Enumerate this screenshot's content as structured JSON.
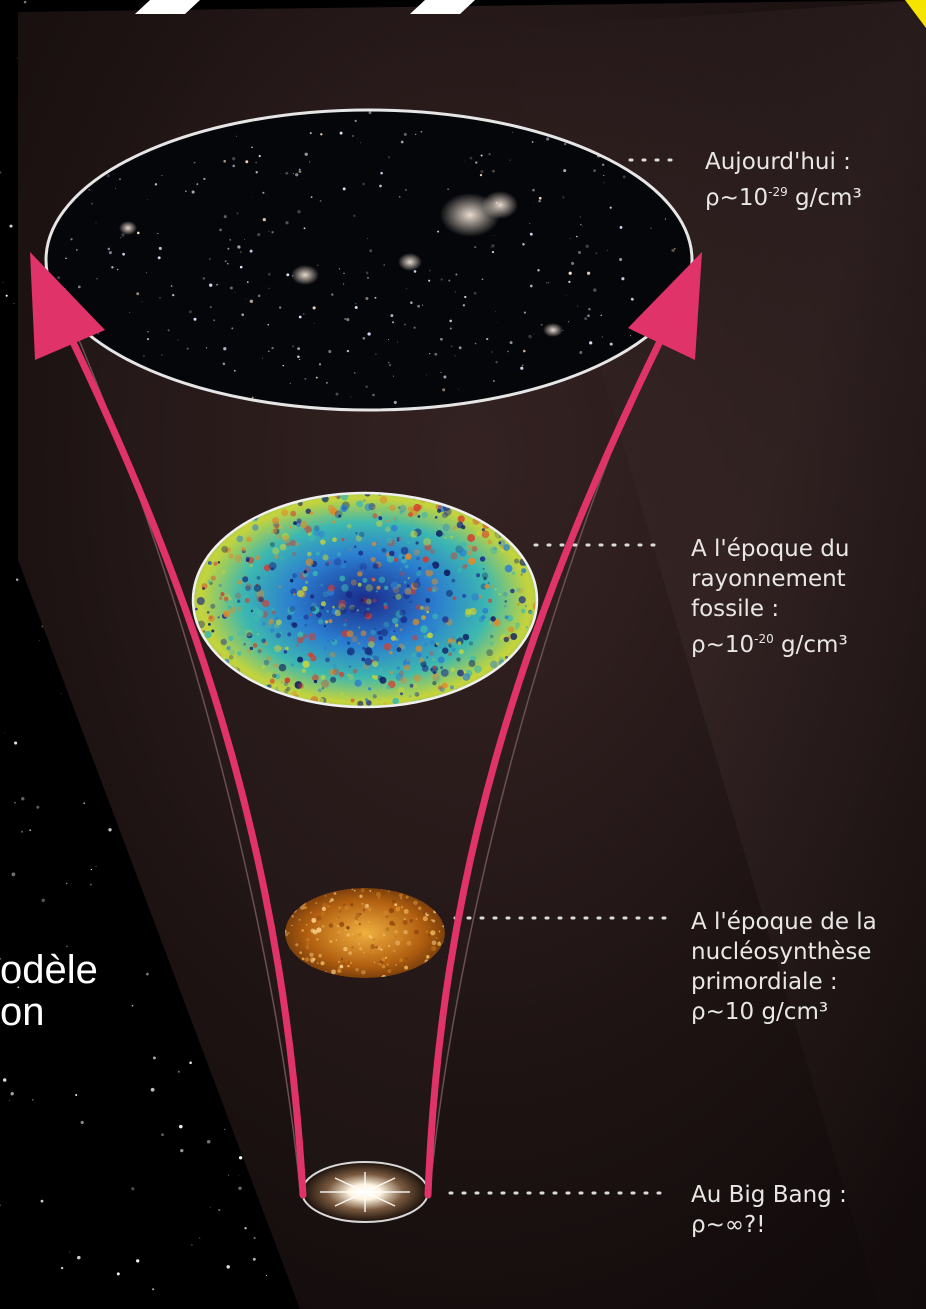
{
  "background_text": {
    "line1": "odèle",
    "line2": "on"
  },
  "epochs": [
    {
      "id": "today",
      "title": "Aujourd'hui :",
      "density_prefix": "ρ~10",
      "density_exp": "-29",
      "density_unit": " g/cm³"
    },
    {
      "id": "cmb",
      "title_lines": [
        "A l'époque du",
        "rayonnement",
        "fossile :"
      ],
      "density_prefix": "ρ~10",
      "density_exp": "-20",
      "density_unit": " g/cm³"
    },
    {
      "id": "bbn",
      "title_lines": [
        "A l'époque de la",
        "nucléosynthèse",
        "primordiale :"
      ],
      "density": "ρ~10 g/cm³"
    },
    {
      "id": "bigbang",
      "title": "Au Big Bang :",
      "density": "ρ~∞?!"
    }
  ],
  "colors": {
    "arrow": "#e0336a",
    "label_text": "#e9e6e6",
    "background": "#1c1313",
    "yellow_corner": "#f5e400"
  }
}
